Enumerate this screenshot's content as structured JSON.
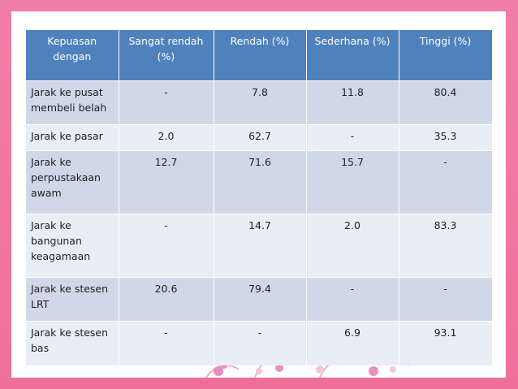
{
  "table": {
    "headers": [
      "Kepuasan dengan",
      "Sangat rendah (%)",
      "Rendah (%)",
      "Sederhana (%)",
      "Tinggi (%)"
    ],
    "rows": [
      [
        "Jarak ke pusat membeli belah",
        "-",
        "7.8",
        "11.8",
        "80.4"
      ],
      [
        "Jarak ke pasar",
        "2.0",
        "62.7",
        "-",
        "35.3"
      ],
      [
        "Jarak  ke perpustakaan awam",
        "12.7",
        "71.6",
        "15.7",
        "-"
      ],
      [
        "Jarak ke bangunan keagamaan",
        "-",
        "14.7",
        "2.0",
        "83.3"
      ],
      [
        "Jarak ke stesen LRT",
        "20.6",
        "79.4",
        "-",
        "-"
      ],
      [
        "Jarak ke stesen bas",
        "-",
        "-",
        "6.9",
        "93.1"
      ]
    ]
  },
  "colors": {
    "background": "#f07aa4",
    "header": "#4f81bd",
    "row_odd": "#d0d8e8",
    "row_even": "#e9edf4"
  },
  "decoration": "floral-border"
}
